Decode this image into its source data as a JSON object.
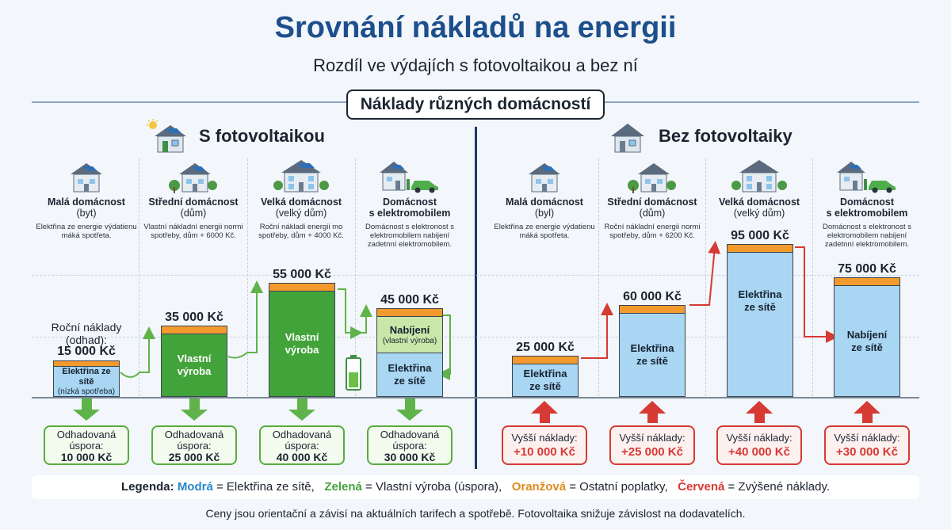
{
  "header": {
    "title": "Srovnání nákladů na energii",
    "subtitle": "Rozdíl ve výdajích s fotovoltaikou a bez ní",
    "section_label": "Náklady různých domácností"
  },
  "left": {
    "heading": "S fotovoltaikou",
    "columns": [
      {
        "name": "Malá domácnost",
        "sub": "(byt)",
        "desc": "Elektřina ze energie výdatienu máká spotřeta.",
        "bar_total": "15 000 Kč",
        "pre_label": "Roční náklady (odhad):",
        "segments": [
          "Elektřina ze sítě",
          "(nízká spotřeba)"
        ],
        "icon": "apartment-house-icon"
      },
      {
        "name": "Střední domácnost",
        "sub": "(dům)",
        "desc": "Vlastní nákladní energii normi spotřeby, dům + 6000 Kč.",
        "bar_total": "35 000 Kč",
        "segments": [
          "Vlastní výroba"
        ],
        "icon": "house-icon"
      },
      {
        "name": "Velká domácnost",
        "sub": "(velký dům)",
        "desc": "Roční nákladi energii mo spotřeby, dům + 4000 Kč.",
        "bar_total": "55 000 Kč",
        "segments": [
          "Vlastní výroba"
        ],
        "icon": "big-house-icon"
      },
      {
        "name": "Domácnost",
        "sub": "s elektromobilem",
        "desc": "Domácnost s elektronost s elektromobilem nabijení zadetnní elektromobilem.",
        "bar_total": "45 000 Kč",
        "segments": [
          "Nabíjení",
          "(vlastní výroba)",
          "Elektřina ze sítě"
        ],
        "icon": "house-ev-icon"
      }
    ],
    "savings": [
      {
        "label": "Odhadovaná úspora:",
        "value": "10 000 Kč"
      },
      {
        "label": "Odhadovaná úspora:",
        "value": "25 000 Kč"
      },
      {
        "label": "Odhadovaná úspora:",
        "value": "40 000 Kč"
      },
      {
        "label": "Odhadovaná úspora:",
        "value": "30 000 Kč"
      }
    ]
  },
  "right": {
    "heading": "Bez fotovoltaiky",
    "columns": [
      {
        "name": "Malá domácnost",
        "sub": "(byl)",
        "desc": "Elektřina ze energie výdatienu máká spotřeta.",
        "bar_total": "25 000 Kč",
        "segments": [
          "Elektřina ze sítě"
        ],
        "icon": "apartment-house-icon"
      },
      {
        "name": "Střední domácnost",
        "sub": "(dům)",
        "desc": "Roční nákladní energii normi spotřeby, dům + 6200 Kč.",
        "bar_total": "60 000 Kč",
        "segments": [
          "Elektřina ze sítě"
        ],
        "icon": "house-icon"
      },
      {
        "name": "Velká domácnost",
        "sub": "(velký dům)",
        "desc": "",
        "bar_total": "95 000 Kč",
        "segments": [
          "Elektřina ze sítě"
        ],
        "icon": "big-house-icon"
      },
      {
        "name": "Domácnost",
        "sub": "s elektromobilem",
        "desc": "Domácnost s elektronost s elektromobilem nabijení zadetnní elektromobilem.",
        "bar_total": "75 000 Kč",
        "segments": [
          "Nabíjení ze sítě"
        ],
        "icon": "house-ev-icon"
      }
    ],
    "costs": [
      {
        "label": "Vyšší náklady:",
        "value": "+10 000 Kč"
      },
      {
        "label": "Vyšší náklady:",
        "value": "+25 000 Kč"
      },
      {
        "label": "Vyšší náklady:",
        "value": "+40 000 Kč"
      },
      {
        "label": "Vyšší náklady:",
        "value": "+30 000 Kč"
      }
    ]
  },
  "legend": {
    "prefix": "Legenda:",
    "blue_word": "Modrá",
    "blue_text": "= Elektřina ze sítě,",
    "green_word": "Zelená",
    "green_text": "= Vlastní výroba (úspora),",
    "orange_word": "Oranžová",
    "orange_text": "= Ostatní poplatky,",
    "red_word": "Červená",
    "red_text": "= Zvýšené náklady."
  },
  "footer": "Ceny jsou orientační a závisí na aktuálních tarifech a spotřebě. Fotovoltaika snižuje závislost na dodavatelích.",
  "colors": {
    "title": "#1c4f8c",
    "grid_blue": "#a9d6f2",
    "own_green": "#43a33b",
    "fees_orange": "#f39a2e",
    "cost_red": "#d63a35",
    "save_green": "#58ad3f"
  }
}
